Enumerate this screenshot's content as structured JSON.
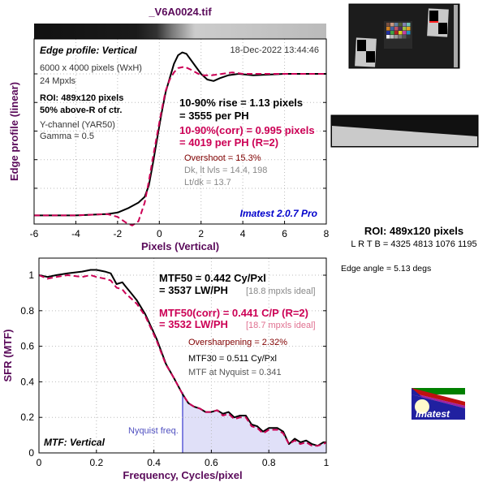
{
  "title": "_V6A0024.tif",
  "colors": {
    "measured": "#000000",
    "corrected": "#cc0055",
    "axis_title": "#5a0a5a",
    "nyquist": "#8080e0",
    "nyquist_fill": "#e0e0f8",
    "brand": "#0000cc"
  },
  "edge_panel": {
    "heading": "Edge profile: Vertical",
    "date": "18-Dec-2022 13:44:46",
    "info": [
      "6000 x 4000 pixels (WxH)",
      "24 Mpxls"
    ],
    "roi": [
      "ROI: 489x120 pixels",
      "50% above-R of ctr."
    ],
    "channel": [
      "Y-channel  (YAR50)",
      "Gamma = 0.5"
    ],
    "rise": [
      "10-90% rise = 1.13 pixels",
      "= 3555 per PH"
    ],
    "rise_corr": [
      "10-90%(corr) = 0.995 pixels",
      "= 4019 per PH  (R=2)"
    ],
    "overshoot": "Overshoot = 15.3%",
    "levels": [
      "Dk, lt lvls = 14.4, 198",
      "Lt/dk = 13.7"
    ],
    "version": "Imatest 2.0.7 Pro"
  },
  "mtf_panel": {
    "heading": "MTF: Vertical",
    "mtf50": [
      "MTF50 = 0.442 Cy/Pxl",
      "= 3537 LW/PH"
    ],
    "mtf50_ideal": "[18.8 mpxls ideal]",
    "mtf50_corr": [
      "MTF50(corr) = 0.441 C/P  (R=2)",
      "= 3532 LW/PH"
    ],
    "mtf50_corr_ideal": "[18.7 mpxls ideal]",
    "oversharpening": "Oversharpening = 2.32%",
    "mtf30": "MTF30 = 0.511 Cy/Pxl",
    "nyquist_mtf": "MTF at Nyquist = 0.341",
    "nyquist_label": "Nyquist freq."
  },
  "side": {
    "roi": "ROI: 489x120 pixels",
    "lrtb": "L R  T B = 4325 4813  1076 1195",
    "edge_angle": "Edge angle = 5.13 degs",
    "logo": "Imatest"
  },
  "chart_data": [
    {
      "type": "line",
      "title": "Edge profile: Vertical",
      "xlabel": "Pixels (Vertical)",
      "ylabel": "Edge profile (linear)",
      "xlim": [
        -6,
        8
      ],
      "xticks": [
        -6,
        -4,
        -2,
        0,
        2,
        4,
        6,
        8
      ],
      "ylim": [
        -0.05,
        1.244
      ],
      "yticks": [
        0.2,
        0.4,
        0.6,
        0.8,
        1.0
      ],
      "grid": true,
      "series": [
        {
          "name": "measured",
          "style": "solid",
          "x": [
            -6,
            -4,
            -2.5,
            -2,
            -1.5,
            -1,
            -0.7,
            -0.5,
            -0.3,
            -0.1,
            0.1,
            0.3,
            0.5,
            0.7,
            0.9,
            1.1,
            1.3,
            1.6,
            2,
            2.3,
            2.6,
            2.9,
            3.3,
            3.8,
            4.5,
            6,
            8
          ],
          "y": [
            0.01,
            0.01,
            0.02,
            0.03,
            0.06,
            0.1,
            0.14,
            0.22,
            0.38,
            0.55,
            0.72,
            0.87,
            0.97,
            1.07,
            1.13,
            1.15,
            1.14,
            1.08,
            1.0,
            0.96,
            0.95,
            0.97,
            0.99,
            1.0,
            0.99,
            1.0,
            1.0
          ]
        },
        {
          "name": "corrected (R=2)",
          "style": "dashed",
          "x": [
            -6,
            -4,
            -2.5,
            -2,
            -1.6,
            -1.3,
            -1,
            -0.7,
            -0.5,
            -0.3,
            -0.1,
            0.1,
            0.3,
            0.5,
            0.7,
            0.9,
            1.2,
            1.5,
            2,
            2.5,
            3,
            3.5,
            4,
            6,
            8
          ],
          "y": [
            0.01,
            0.01,
            0.02,
            0.0,
            -0.04,
            -0.06,
            -0.03,
            0.1,
            0.25,
            0.42,
            0.58,
            0.74,
            0.88,
            0.96,
            1.01,
            1.04,
            1.05,
            1.03,
            0.99,
            0.99,
            1.0,
            1.01,
            1.0,
            1.0,
            1.0
          ]
        }
      ]
    },
    {
      "type": "line",
      "title": "MTF: Vertical",
      "xlabel": "Frequency, Cycles/pixel",
      "ylabel": "SFR (MTF)",
      "xlim": [
        0,
        1
      ],
      "xticks": [
        0,
        0.2,
        0.4,
        0.6,
        0.8,
        1
      ],
      "ylim": [
        0,
        1.096
      ],
      "yticks": [
        0,
        0.2,
        0.4,
        0.6,
        0.8,
        1
      ],
      "grid": true,
      "nyquist": 0.5,
      "series": [
        {
          "name": "measured",
          "style": "solid",
          "x": [
            0,
            0.03,
            0.06,
            0.1,
            0.15,
            0.18,
            0.2,
            0.23,
            0.25,
            0.27,
            0.29,
            0.3,
            0.32,
            0.34,
            0.37,
            0.39,
            0.41,
            0.442,
            0.47,
            0.5,
            0.52,
            0.54,
            0.56,
            0.58,
            0.6,
            0.62,
            0.64,
            0.66,
            0.68,
            0.7,
            0.72,
            0.74,
            0.76,
            0.78,
            0.8,
            0.83,
            0.85,
            0.87,
            0.89,
            0.91,
            0.93,
            0.95,
            0.97,
            0.99,
            1
          ],
          "y": [
            1.0,
            0.99,
            1.0,
            1.01,
            1.02,
            1.03,
            1.03,
            1.02,
            1.01,
            0.95,
            0.96,
            0.94,
            0.9,
            0.86,
            0.78,
            0.71,
            0.64,
            0.5,
            0.42,
            0.33,
            0.28,
            0.26,
            0.25,
            0.23,
            0.23,
            0.24,
            0.22,
            0.23,
            0.2,
            0.21,
            0.21,
            0.16,
            0.15,
            0.12,
            0.14,
            0.14,
            0.12,
            0.05,
            0.08,
            0.06,
            0.07,
            0.05,
            0.04,
            0.06,
            0.06
          ]
        },
        {
          "name": "corrected (R=2)",
          "style": "dashed",
          "x": [
            0,
            0.03,
            0.06,
            0.1,
            0.15,
            0.18,
            0.2,
            0.23,
            0.25,
            0.27,
            0.29,
            0.3,
            0.32,
            0.34,
            0.37,
            0.39,
            0.41,
            0.441,
            0.47,
            0.5,
            0.52,
            0.54,
            0.56,
            0.58,
            0.6,
            0.62,
            0.64,
            0.66,
            0.68,
            0.7,
            0.72,
            0.74,
            0.76,
            0.78,
            0.8,
            0.83,
            0.85,
            0.87,
            0.89,
            0.91,
            0.93,
            0.95,
            0.97,
            0.99,
            1
          ],
          "y": [
            1.0,
            0.98,
            0.99,
            1.0,
            0.99,
            1.0,
            0.99,
            0.98,
            0.97,
            0.93,
            0.92,
            0.9,
            0.87,
            0.84,
            0.77,
            0.7,
            0.63,
            0.5,
            0.42,
            0.33,
            0.28,
            0.26,
            0.25,
            0.23,
            0.23,
            0.24,
            0.21,
            0.22,
            0.19,
            0.2,
            0.2,
            0.15,
            0.14,
            0.11,
            0.13,
            0.13,
            0.11,
            0.05,
            0.07,
            0.05,
            0.06,
            0.04,
            0.04,
            0.05,
            0.06
          ]
        }
      ]
    }
  ]
}
